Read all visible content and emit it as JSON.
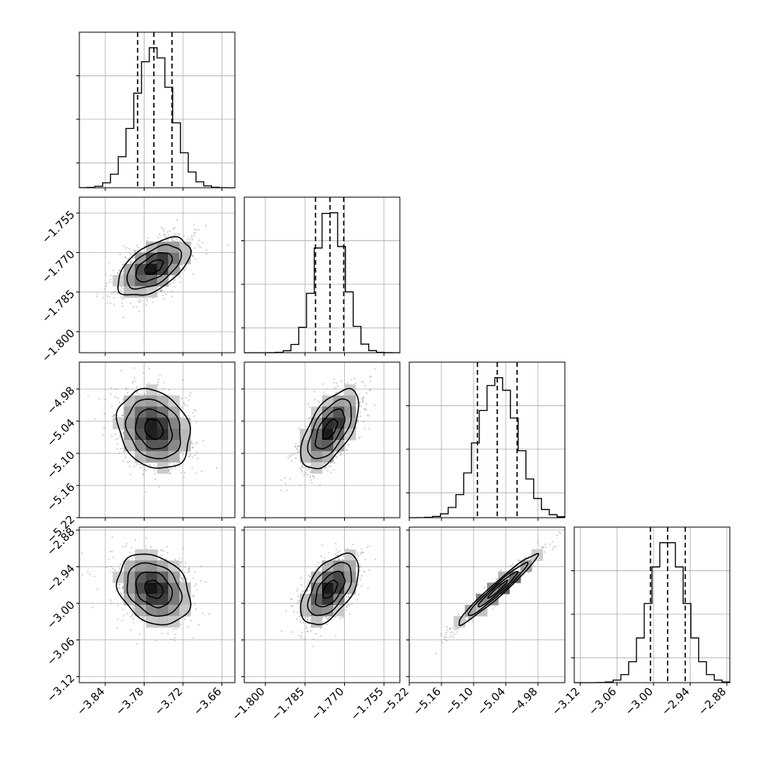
{
  "chart_data": {
    "type": "corner",
    "colors": {
      "line": "#000000",
      "grid": "#b0b0b0",
      "quantile": "#000000",
      "density_max": "#000000",
      "density_min": "#f5f5f5"
    },
    "grid": true,
    "parameters": [
      {
        "id": "p0",
        "mean": -3.765,
        "std": 0.028,
        "range": [
          -3.88,
          -3.64
        ],
        "ticks": [
          -3.84,
          -3.78,
          -3.72,
          -3.66
        ],
        "tick_labels": [
          "−3.84",
          "−3.78",
          "−3.72",
          "−3.66"
        ],
        "quantiles": [
          -3.79,
          -3.765,
          -3.737
        ]
      },
      {
        "id": "p1",
        "mean": -1.7755,
        "std": 0.0055,
        "range": [
          -1.808,
          -1.749
        ],
        "ticks": [
          -1.8,
          -1.785,
          -1.77,
          -1.755
        ],
        "tick_labels": [
          "−1.800",
          "−1.785",
          "−1.770",
          "−1.755"
        ],
        "quantiles": [
          -1.781,
          -1.7755,
          -1.7703
        ]
      },
      {
        "id": "p2",
        "mean": -5.055,
        "std": 0.037,
        "range": [
          -5.22,
          -4.93
        ],
        "ticks": [
          -5.22,
          -5.16,
          -5.1,
          -5.04,
          -4.98
        ],
        "tick_labels": [
          "−5.22",
          "−5.16",
          "−5.10",
          "−5.04",
          "−4.98"
        ],
        "quantiles": [
          -5.093,
          -5.056,
          -5.019
        ]
      },
      {
        "id": "p3",
        "mean": -2.977,
        "std": 0.029,
        "range": [
          -3.13,
          -2.875
        ],
        "ticks": [
          -3.12,
          -3.06,
          -3.0,
          -2.94,
          -2.88
        ],
        "tick_labels": [
          "−3.12",
          "−3.06",
          "−3.00",
          "−2.94",
          "−2.88"
        ],
        "quantiles": [
          -3.005,
          -2.977,
          -2.948
        ]
      }
    ],
    "correlations": {
      "1-0": 0.55,
      "2-0": -0.2,
      "2-1": 0.6,
      "3-0": -0.25,
      "3-1": 0.55,
      "3-2": 0.97
    },
    "contour_levels": [
      "0.5-sigma",
      "1-sigma",
      "1.5-sigma",
      "2-sigma"
    ]
  }
}
